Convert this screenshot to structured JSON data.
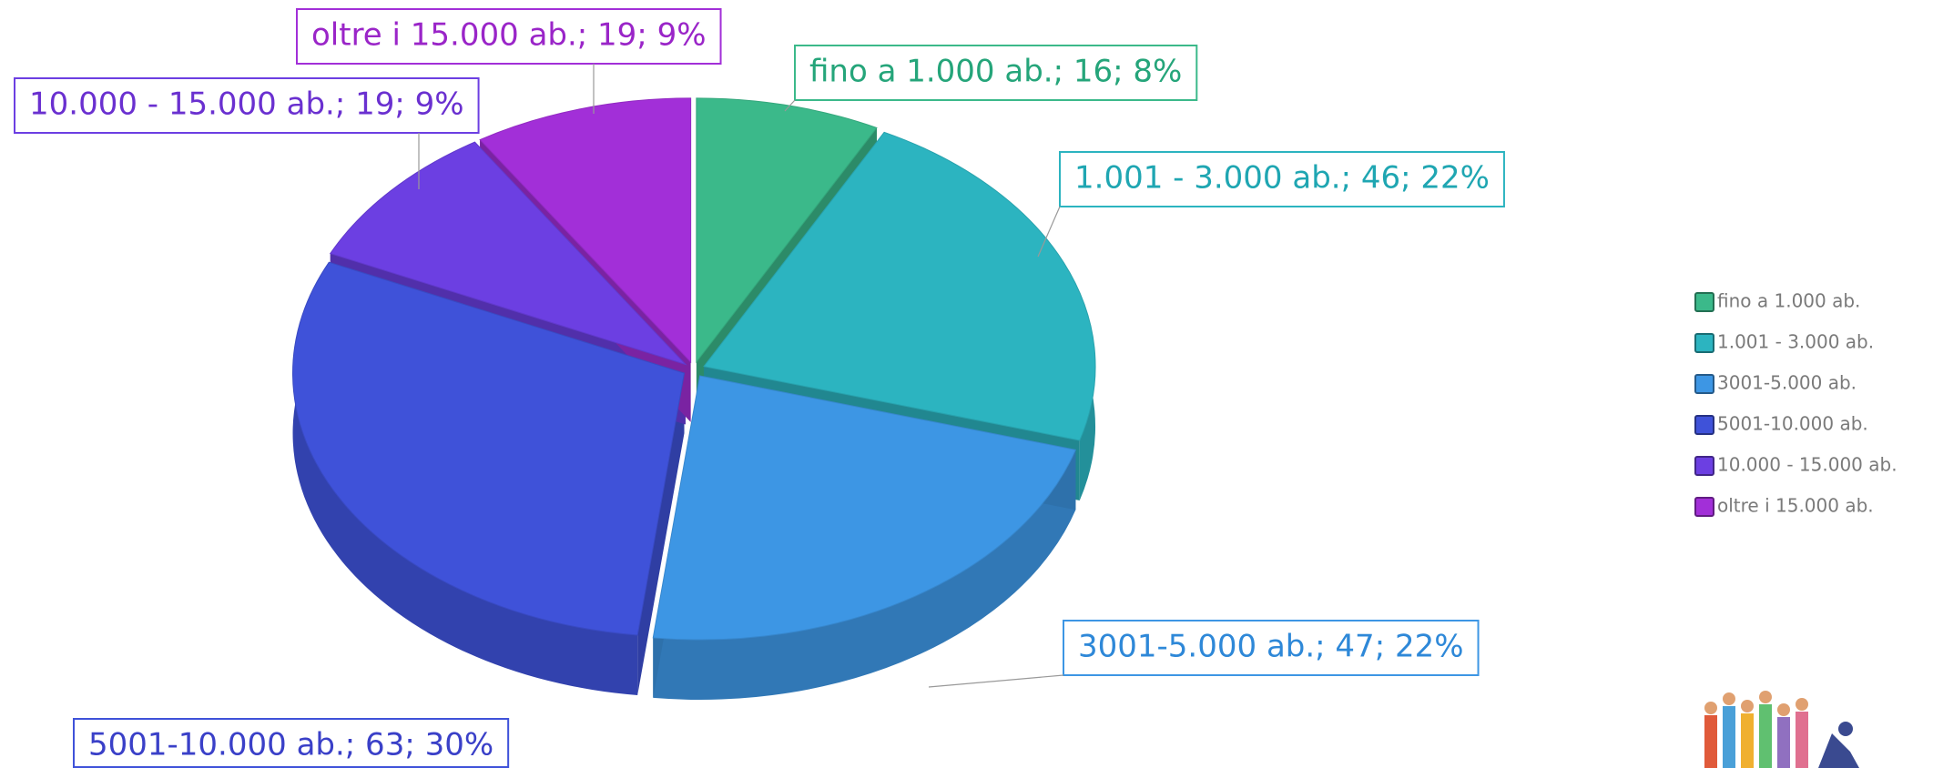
{
  "chart_data": {
    "type": "pie3d",
    "categories": [
      "fino a 1.000 ab.",
      "1.001 - 3.000 ab.",
      "3001-5.000 ab.",
      "5001-10.000 ab.",
      "10.000 - 15.000 ab.",
      "oltre i 15.000 ab."
    ],
    "values": [
      16,
      46,
      47,
      63,
      19,
      19
    ],
    "value_labels": [
      "fino a 1.000 ab.; 16; 8%",
      "1.001 - 3.000 ab.; 46; 22%",
      "3001-5.000 ab.; 47; 22%",
      "5001-10.000 ab.; 63; 30%",
      "10.000 - 15.000 ab.; 19; 9%",
      "oltre i 15.000 ab.; 19; 9%"
    ],
    "colors": [
      "#3bb98a",
      "#2cb4c0",
      "#3d96e4",
      "#3f52d9",
      "#6c3fe2",
      "#a22fd8"
    ],
    "legend": "right"
  }
}
